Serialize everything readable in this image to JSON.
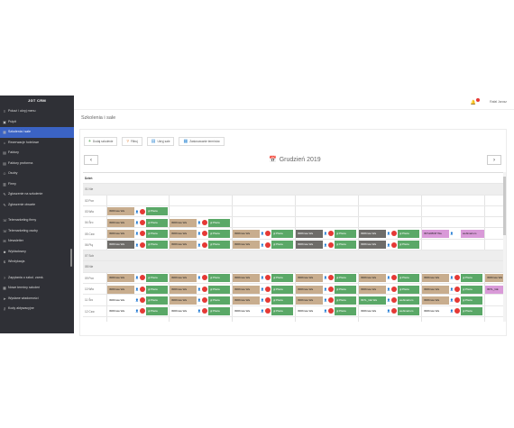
{
  "app": {
    "name": "JGT CRM"
  },
  "sidebar": {
    "items": [
      {
        "label": "Pokaż / ukryj menu",
        "icon": "menu-icon"
      },
      {
        "label": "Pulpit",
        "icon": "dashboard-icon"
      },
      {
        "label": "Szkolenia i sale",
        "icon": "calendar-icon",
        "active": true
      },
      {
        "label": "Rezerwacje hotelowe",
        "icon": "hotel-icon"
      },
      {
        "label": "Faktury",
        "icon": "invoice-icon"
      },
      {
        "label": "Faktury proforma",
        "icon": "invoice-icon"
      },
      {
        "label": "Osoby",
        "icon": "person-icon"
      },
      {
        "label": "Firmy",
        "icon": "building-icon"
      },
      {
        "label": "Zgłoszenie na szkolenie",
        "icon": "form-icon"
      },
      {
        "label": "Zgłoszenie otwarte",
        "icon": "form-icon"
      }
    ],
    "items2": [
      {
        "label": "Telemarketing firmy",
        "icon": "phone-icon"
      },
      {
        "label": "Telemarketing osoby",
        "icon": "phone-icon"
      },
      {
        "label": "Newsletter",
        "icon": "mail-icon"
      },
      {
        "label": "Wykładowcy",
        "icon": "lecturer-icon"
      },
      {
        "label": "Windykacja",
        "icon": "money-icon"
      }
    ],
    "items3": [
      {
        "label": "Zapytania o szkol. zamk.",
        "icon": "question-icon"
      },
      {
        "label": "Nowe terminy szkoleń",
        "icon": "calendar-icon"
      },
      {
        "label": "Wysłane wiadomości",
        "icon": "send-icon"
      },
      {
        "label": "Kody aktywacyjne",
        "icon": "key-icon"
      }
    ]
  },
  "header": {
    "user": "Rafał Jarosz"
  },
  "page": {
    "title": "Szkolenia i sale"
  },
  "toolbar": {
    "add": "Dodaj szkolenie",
    "filter": "Filtruj",
    "rooms": "Ukryj sale",
    "zoom": "Zastosowanie terminów"
  },
  "calendar": {
    "month": "Grudzień 2019",
    "header": "Dzień",
    "days": [
      {
        "label": "01 Nie",
        "weekend": true
      },
      {
        "label": "02 Pon"
      },
      {
        "label": "03 Wto"
      },
      {
        "label": "04 Śro"
      },
      {
        "label": "05 Czw"
      },
      {
        "label": "06 Pią"
      },
      {
        "label": "07 Sob",
        "weekend": true
      },
      {
        "label": "08 Nie",
        "weekend": true
      },
      {
        "label": "09 Pon"
      },
      {
        "label": "10 Wto"
      },
      {
        "label": "11 Śro"
      },
      {
        "label": "12 Czw"
      }
    ],
    "row3": {
      "e1": "IM6Kraw Wa",
      "e2": "gl Płaza",
      "e3": "IM6Kraw Wa",
      "e4": "gl Płaza"
    },
    "row4": {
      "e1": "IM6Kraw Wa",
      "e2": "gl Płaza",
      "e3": "IM6Kraw Wa",
      "e4": "gl Płaza"
    },
    "row5": {
      "e1": "IM6Kraw Wa",
      "e2": "gl Płaza",
      "e3": "IM6Kraw Wa",
      "e4": "gl Płaza",
      "e5": "IM6Kraw Wa",
      "e6": "gl Płaza",
      "e7": "IM6Kraw Wa",
      "e8": "gl Płaza",
      "e9": "IM6Kraw Wa",
      "e10": "gl Płaza",
      "e11": "IM7ubBNP Wa",
      "e12": "webinarium"
    },
    "row6": {
      "e1": "IM6Kraw Wa",
      "e2": "gl Płaza",
      "e3": "IM6Kraw Wa",
      "e4": "gl Płaza",
      "e5": "IM6Kraw Wa",
      "e6": "gl Płaza",
      "e7": "IM6Kraw Wa",
      "e8": "gl Płaza",
      "e9": "IM6Kraw Wa",
      "e10": "gl Płaza"
    },
    "row9": {
      "e1": "IM6Kraw Wa",
      "e2": "gl Płaza",
      "e3": "IM6Kraw Wa",
      "e4": "gl Płaza",
      "e5": "IM6Kraw Wa",
      "e6": "gl Płaza",
      "e7": "IM6Kraw Wa",
      "e8": "gl Płaza",
      "e9": "IM6Kraw Wa",
      "e10": "gl Płaza",
      "e11": "IM6Kraw Wa",
      "e12": "gl Płaza",
      "e13": "IM6Kraw Wa",
      "e14": "gl Płaza",
      "e15": "IM6Kraw Wa",
      "e16": "gl Płaza"
    },
    "row10": {
      "e1": "IM6Kraw Wa",
      "e2": "gl Płaza",
      "e3": "IM6Kraw Wa",
      "e4": "gl Płaza",
      "e5": "IM6Kraw Wa",
      "e6": "gl Płaza",
      "e7": "IM6Kraw Wa",
      "e8": "gl Płaza",
      "e9": "IM6Kraw Wa",
      "e10": "gl Płaza",
      "e11": "IM6Kraw Wa",
      "e12": "gl Płaza",
      "e13": "IM6Kraw Wa",
      "e14": "gl Płaza",
      "e15": "IM6Kraw Wa",
      "e16": "IM7L_GE"
    },
    "row11": {
      "e1": "IM6Kraw Wa",
      "e2": "gl Płaza",
      "e3": "IM6Kraw Wa",
      "e4": "gl Płaza",
      "e5": "IM6Kraw Wa",
      "e6": "gl Płaza",
      "e7": "IM6Kraw Wa",
      "e8": "gl Płaza",
      "e9": "IM7L_GE Wa",
      "e10": "webinarium",
      "e11": "IM6Kraw Wa",
      "e12": "gl Płaza"
    },
    "row12": {
      "e1": "IM6Kraw Wa",
      "e2": "gl Płaza",
      "e3": "IM6Kraw Wa",
      "e4": "gl Płaza",
      "e5": "IM6Kraw Wa",
      "e6": "gl Płaza",
      "e7": "IM6Kraw Wa",
      "e8": "gl Płaza",
      "e9": "IM6Kraw Wa",
      "e10": "webinarium",
      "e11": "IM6Kraw Wa",
      "e12": "gl Płaza"
    }
  },
  "colors": {
    "accent": "#3b63c4",
    "sidebar": "#2f3036",
    "tan": "#c8ad8e",
    "green": "#5aa867",
    "gray": "#6e6c69",
    "pink": "#d99ad8"
  }
}
